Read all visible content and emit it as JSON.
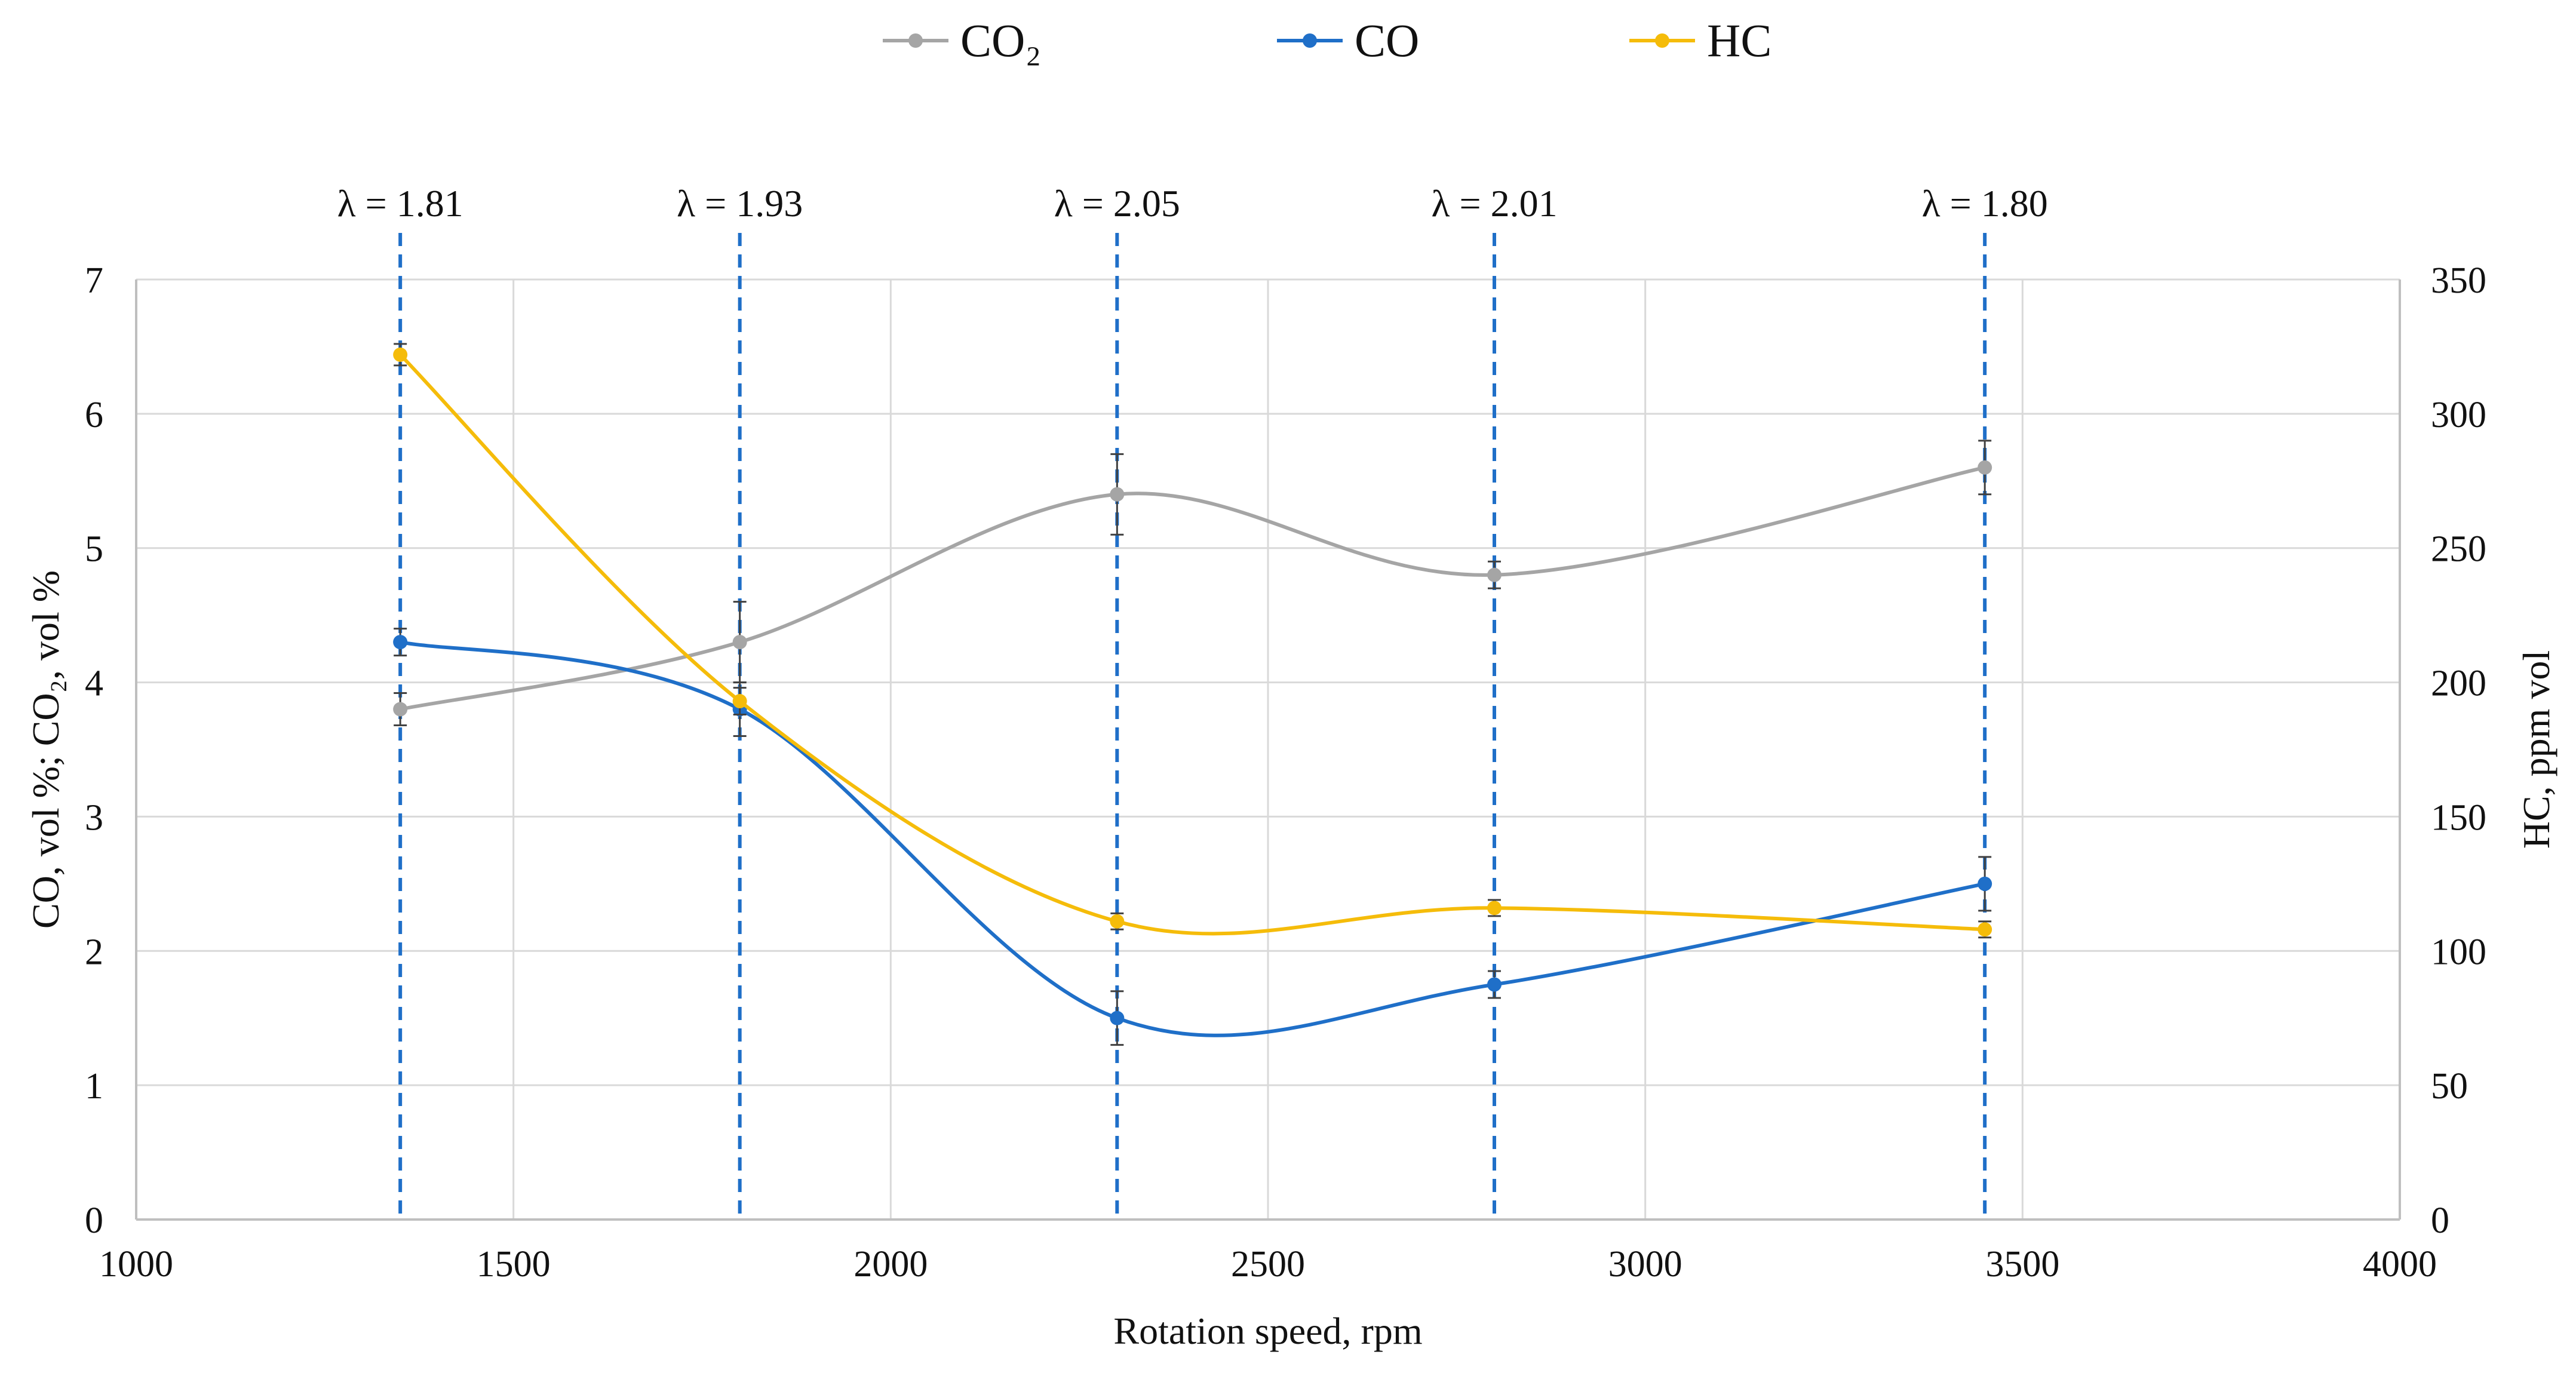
{
  "chart_data": {
    "type": "line",
    "xlabel": "Rotation speed, rpm",
    "ylabel_left": "CO, vol %; CO₂, vol %",
    "ylabel_right": "HC, ppm vol",
    "xlim": [
      1000,
      4000
    ],
    "xticks": [
      1000,
      1500,
      2000,
      2500,
      3000,
      3500,
      4000
    ],
    "ylim_left": [
      0,
      7
    ],
    "yticks_left": [
      0,
      1,
      2,
      3,
      4,
      5,
      6,
      7
    ],
    "ylim_right": [
      0,
      350
    ],
    "yticks_right": [
      0,
      50,
      100,
      150,
      200,
      250,
      300,
      350
    ],
    "grid": true,
    "legend_position": "top-center",
    "x": [
      1350,
      1800,
      2300,
      2800,
      3450
    ],
    "series": [
      {
        "name": "CO₂",
        "axis": "left",
        "color": "#a5a5a5",
        "values": [
          3.8,
          4.3,
          5.4,
          4.8,
          5.6
        ],
        "errors": [
          0.12,
          0.3,
          0.3,
          0.1,
          0.2
        ]
      },
      {
        "name": "CO",
        "axis": "left",
        "color": "#1f6fc8",
        "values": [
          4.3,
          3.8,
          1.5,
          1.75,
          2.5
        ],
        "errors": [
          0.1,
          0.2,
          0.2,
          0.1,
          0.2
        ]
      },
      {
        "name": "HC",
        "axis": "right",
        "color": "#f5bc0a",
        "values": [
          322,
          193,
          111,
          116,
          108
        ],
        "errors": [
          4,
          5,
          3,
          3,
          3
        ]
      }
    ],
    "annotations": [
      {
        "x": 1350,
        "label": "λ = 1.81"
      },
      {
        "x": 1800,
        "label": "λ = 1.93"
      },
      {
        "x": 2300,
        "label": "λ = 2.05"
      },
      {
        "x": 2800,
        "label": "λ = 2.01"
      },
      {
        "x": 3450,
        "label": "λ = 1.80"
      }
    ],
    "annotation_color": "#1f6fc8"
  }
}
